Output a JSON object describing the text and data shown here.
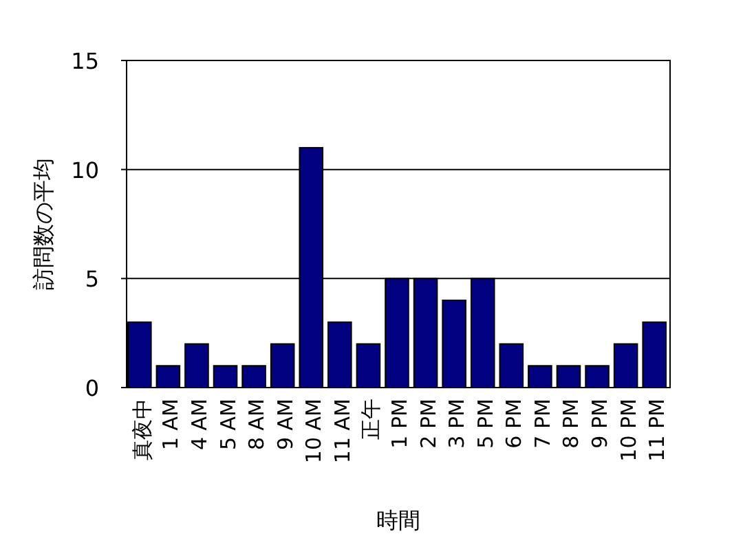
{
  "chart_data": {
    "type": "bar",
    "xlabel": "時間",
    "ylabel": "訪問数の平均",
    "categories": [
      "真夜中",
      "1 AM",
      "4 AM",
      "5 AM",
      "8 AM",
      "9 AM",
      "10 AM",
      "11 AM",
      "正午",
      "1 PM",
      "2 PM",
      "3 PM",
      "5 PM",
      "6 PM",
      "7 PM",
      "8 PM",
      "9 PM",
      "10 PM",
      "11 PM"
    ],
    "values": [
      3,
      1,
      2,
      1,
      1,
      2,
      11,
      3,
      2,
      5,
      5,
      4,
      5,
      2,
      1,
      1,
      1,
      2,
      3
    ],
    "color": "#000080",
    "ylim": [
      0,
      15
    ],
    "yticks": [
      0,
      5,
      10,
      15
    ],
    "grid": "y"
  }
}
